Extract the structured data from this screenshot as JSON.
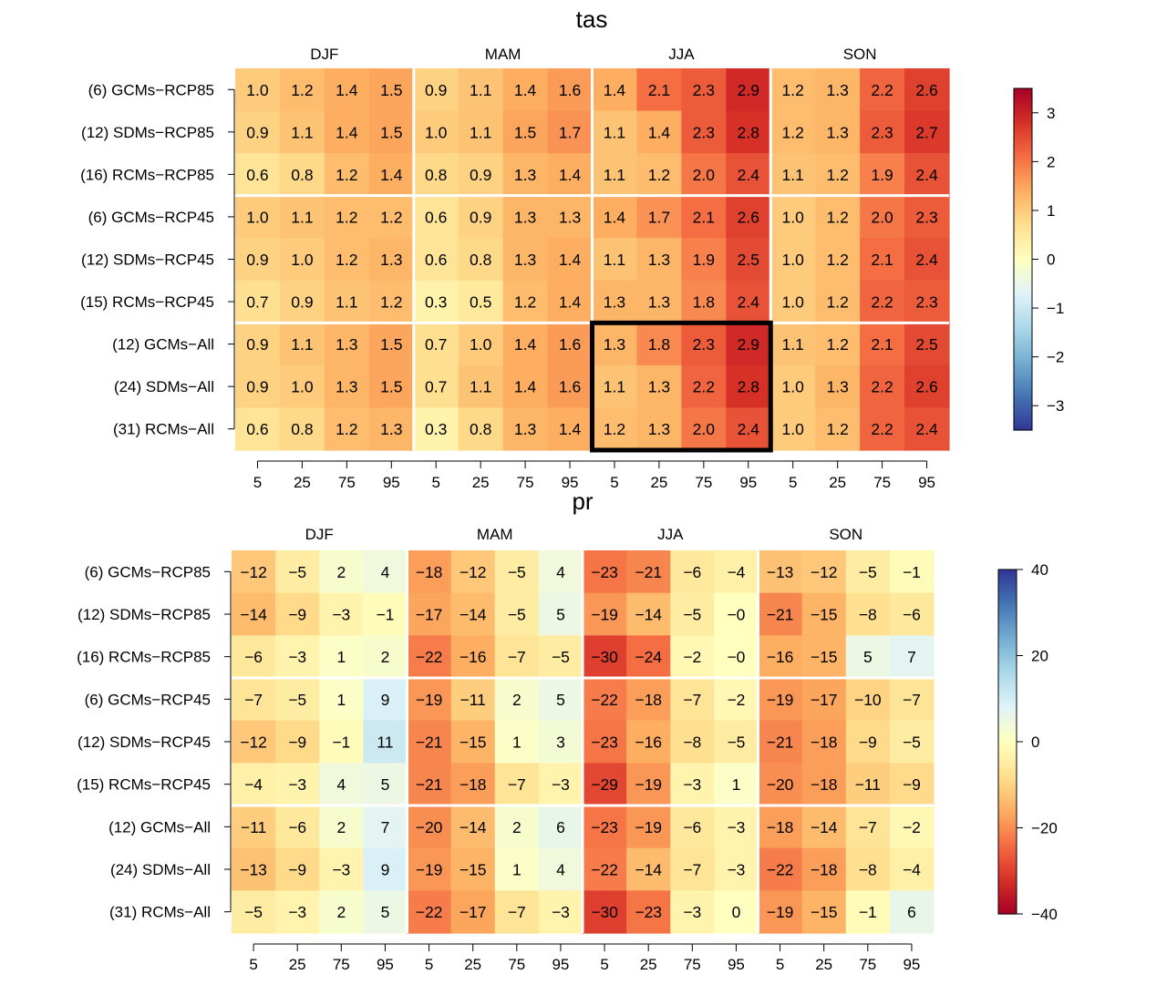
{
  "chart_data": [
    {
      "type": "heatmap",
      "title": "tas",
      "seasons": [
        "DJF",
        "MAM",
        "JJA",
        "SON"
      ],
      "percentiles": [
        "5",
        "25",
        "75",
        "95"
      ],
      "rows": [
        "(6) GCMs−RCP85",
        "(12) SDMs−RCP85",
        "(16) RCMs−RCP85",
        "(6) GCMs−RCP45",
        "(12) SDMs−RCP45",
        "(15) RCMs−RCP45",
        "(12) GCMs−All",
        "(24) SDMs−All",
        "(31) RCMs−All"
      ],
      "row_group_breaks": [
        3,
        6
      ],
      "decimals": 1,
      "values": [
        [
          1.0,
          1.2,
          1.4,
          1.5,
          0.9,
          1.1,
          1.4,
          1.6,
          1.4,
          2.1,
          2.3,
          2.9,
          1.2,
          1.3,
          2.2,
          2.6
        ],
        [
          0.9,
          1.1,
          1.4,
          1.5,
          1.0,
          1.1,
          1.5,
          1.7,
          1.1,
          1.4,
          2.3,
          2.8,
          1.2,
          1.3,
          2.3,
          2.7
        ],
        [
          0.6,
          0.8,
          1.2,
          1.4,
          0.8,
          0.9,
          1.3,
          1.4,
          1.1,
          1.2,
          2.0,
          2.4,
          1.1,
          1.2,
          1.9,
          2.4
        ],
        [
          1.0,
          1.1,
          1.2,
          1.2,
          0.6,
          0.9,
          1.3,
          1.3,
          1.4,
          1.7,
          2.1,
          2.6,
          1.0,
          1.2,
          2.0,
          2.3
        ],
        [
          0.9,
          1.0,
          1.2,
          1.3,
          0.6,
          0.8,
          1.3,
          1.4,
          1.1,
          1.3,
          1.9,
          2.5,
          1.0,
          1.2,
          2.1,
          2.4
        ],
        [
          0.7,
          0.9,
          1.1,
          1.2,
          0.3,
          0.5,
          1.2,
          1.4,
          1.3,
          1.3,
          1.8,
          2.4,
          1.0,
          1.2,
          2.2,
          2.3
        ],
        [
          0.9,
          1.1,
          1.3,
          1.5,
          0.7,
          1.0,
          1.4,
          1.6,
          1.3,
          1.8,
          2.3,
          2.9,
          1.1,
          1.2,
          2.1,
          2.5
        ],
        [
          0.9,
          1.0,
          1.3,
          1.5,
          0.7,
          1.1,
          1.4,
          1.6,
          1.1,
          1.3,
          2.2,
          2.8,
          1.0,
          1.3,
          2.2,
          2.6
        ],
        [
          0.6,
          0.8,
          1.2,
          1.3,
          0.3,
          0.8,
          1.3,
          1.4,
          1.2,
          1.3,
          2.0,
          2.4,
          1.0,
          1.2,
          2.2,
          2.4
        ]
      ],
      "highlight": {
        "rows": [
          6,
          8
        ],
        "season": "JJA"
      },
      "colorbar": {
        "range": [
          -3.5,
          3.5
        ],
        "ticks": [
          3,
          2,
          1,
          0,
          -1,
          -2,
          -3
        ],
        "tick_labels": [
          "3",
          "2",
          "1",
          "0",
          "−1",
          "−2",
          "−3"
        ],
        "palette": "RdYlBu",
        "reversed": true
      }
    },
    {
      "type": "heatmap",
      "title": "pr",
      "seasons": [
        "DJF",
        "MAM",
        "JJA",
        "SON"
      ],
      "percentiles": [
        "5",
        "25",
        "75",
        "95"
      ],
      "rows": [
        "(6) GCMs−RCP85",
        "(12) SDMs−RCP85",
        "(16) RCMs−RCP85",
        "(6) GCMs−RCP45",
        "(12) SDMs−RCP45",
        "(15) RCMs−RCP45",
        "(12) GCMs−All",
        "(24) SDMs−All",
        "(31) RCMs−All"
      ],
      "row_group_breaks": [
        3,
        6
      ],
      "decimals": 0,
      "values": [
        [
          -12,
          -5,
          2,
          4,
          -18,
          -12,
          -5,
          4,
          -23,
          -21,
          -6,
          -4,
          -13,
          -12,
          -5,
          -1
        ],
        [
          -14,
          -9,
          -3,
          -1,
          -17,
          -14,
          -5,
          5,
          -19,
          -14,
          -5,
          "-0",
          -21,
          -15,
          -8,
          -6
        ],
        [
          -6,
          -3,
          1,
          2,
          -22,
          -16,
          -7,
          -5,
          -30,
          -24,
          -2,
          "-0",
          -16,
          -15,
          5,
          7
        ],
        [
          -7,
          -5,
          1,
          9,
          -19,
          -11,
          2,
          5,
          -22,
          -18,
          -7,
          -2,
          -19,
          -17,
          -10,
          -7
        ],
        [
          -12,
          -9,
          -1,
          11,
          -21,
          -15,
          1,
          3,
          -23,
          -16,
          -8,
          -5,
          -21,
          -18,
          -9,
          -5
        ],
        [
          -4,
          -3,
          4,
          5,
          -21,
          -18,
          -7,
          -3,
          -29,
          -19,
          -3,
          1,
          -20,
          -18,
          -11,
          -9
        ],
        [
          -11,
          -6,
          2,
          7,
          -20,
          -14,
          2,
          6,
          -23,
          -19,
          -6,
          -3,
          -18,
          -14,
          -7,
          -2
        ],
        [
          -13,
          -9,
          -3,
          9,
          -19,
          -15,
          1,
          4,
          -22,
          -14,
          -7,
          -3,
          -22,
          -18,
          -8,
          -4
        ],
        [
          -5,
          -3,
          2,
          5,
          -22,
          -17,
          -7,
          -3,
          -30,
          -23,
          -3,
          0,
          -19,
          -15,
          -1,
          6
        ]
      ],
      "colorbar": {
        "range": [
          -40,
          40
        ],
        "ticks": [
          40,
          20,
          0,
          -20,
          -40
        ],
        "tick_labels": [
          "40",
          "20",
          "0",
          "−20",
          "−40"
        ],
        "palette": "RdYlBu",
        "reversed": false
      }
    }
  ]
}
